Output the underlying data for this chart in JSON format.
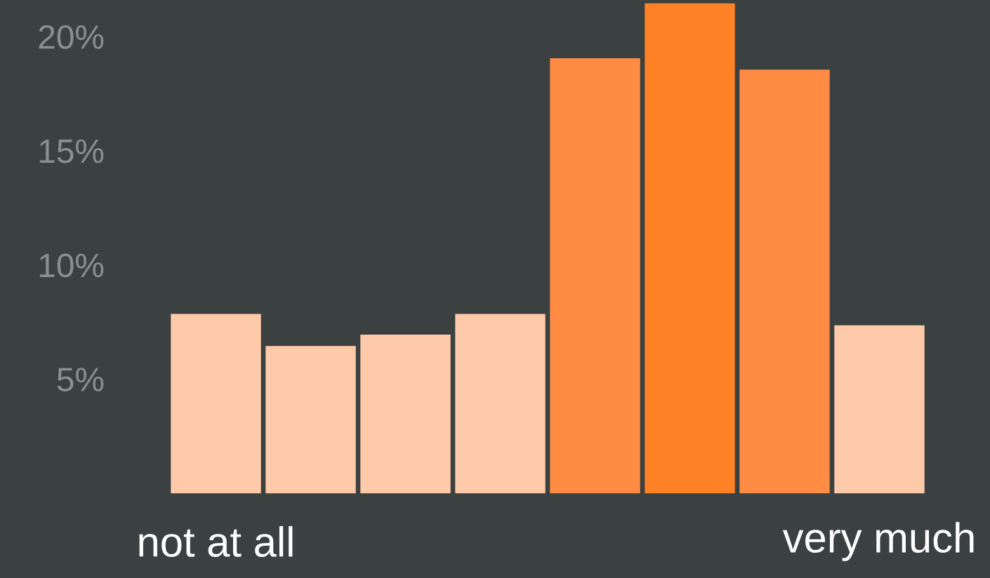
{
  "chart_data": {
    "type": "bar",
    "categories": [
      "not at all",
      null,
      null,
      null,
      null,
      null,
      null,
      "very much"
    ],
    "values": [
      7.9,
      6.5,
      7.0,
      7.9,
      19.1,
      21.5,
      18.6,
      7.4
    ],
    "colors": [
      "#ffcaa9",
      "#ffcaa9",
      "#ffcaa9",
      "#ffcaa9",
      "#ff8c42",
      "#ff8126",
      "#ff8c42",
      "#ffcaa9"
    ],
    "ylim": [
      0,
      21.5
    ],
    "yticks": [
      {
        "value": 5,
        "label": "5%"
      },
      {
        "value": 10,
        "label": "10%"
      },
      {
        "value": 15,
        "label": "15%"
      },
      {
        "value": 20,
        "label": "20%"
      }
    ],
    "grid": false
  }
}
